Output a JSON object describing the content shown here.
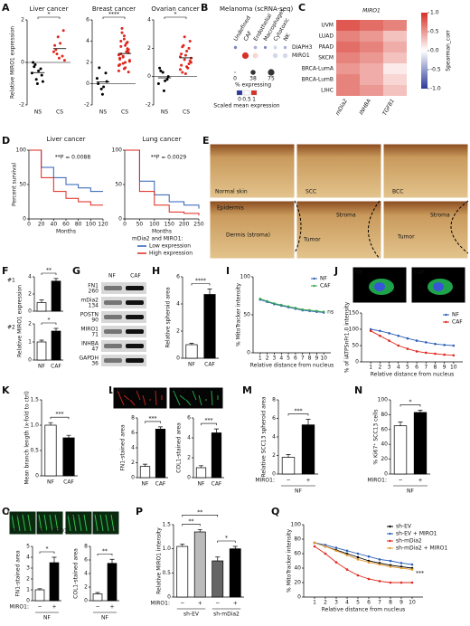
{
  "panel_letters": [
    "A",
    "B",
    "C",
    "D",
    "E",
    "F",
    "G",
    "H",
    "I",
    "J",
    "K",
    "L",
    "M",
    "N",
    "O",
    "P",
    "Q"
  ],
  "images": {
    "E": [
      "Normal skin",
      "SCC",
      "BCC",
      "Epidermis",
      "Dermis (stroma)",
      "Tumor",
      "Stroma",
      "Tumor",
      "Stroma"
    ],
    "J": [
      "NF",
      "CAF"
    ],
    "L": [
      "FN1",
      "COL1"
    ],
    "O": [
      "FN1",
      "COL1",
      "NF",
      "NF+MIRO1"
    ]
  },
  "blot": {
    "lanes": [
      "NF",
      "CAF"
    ],
    "bands": [
      {
        "name": "FN1",
        "kda": 260
      },
      {
        "name": "mDia2",
        "kda": 134
      },
      {
        "name": "POSTN",
        "kda": 90
      },
      {
        "name": "MIRO1",
        "kda": 71
      },
      {
        "name": "INHBA",
        "kda": 47
      },
      {
        "name": "GAPDH",
        "kda": 36
      }
    ]
  },
  "chart_data": [
    {
      "type": "strip",
      "title": "Liver cancer",
      "ylabel": "Relative MIRO1 expression",
      "categories": [
        "NS",
        "CS"
      ],
      "points": [
        [
          -0.5,
          -0.8,
          -0.3,
          0,
          -1,
          -0.6,
          -0.2,
          -0.4,
          -0.9,
          -0.1
        ],
        [
          0.5,
          1.2,
          0.3,
          0.8,
          0.2,
          1.5,
          0.6,
          0.9,
          0.1,
          0.4
        ]
      ],
      "ylim": [
        -2,
        2
      ],
      "yticks": [
        -2,
        0,
        2
      ],
      "significance": "*"
    },
    {
      "type": "strip",
      "title": "Breast cancer",
      "categories": [
        "NS",
        "CS"
      ],
      "points": [
        [
          0.5,
          -0.5,
          1,
          0,
          -1,
          0.2,
          1.5,
          -0.3
        ],
        [
          1.2,
          2.5,
          3.1,
          1.8,
          4.2,
          2.9,
          3.5,
          1.5,
          2.2,
          4.8,
          3.8,
          2.7,
          1.9,
          3.3,
          2.4,
          4.5,
          1.1,
          2.8,
          3.6,
          2.1,
          5.2,
          3.0,
          1.7,
          2.6,
          3.9,
          2.3,
          1.4,
          3.2,
          4.0,
          2.0
        ]
      ],
      "ylim": [
        -2,
        6
      ],
      "yticks": [
        -2,
        0,
        2,
        4,
        6
      ],
      "significance": "****"
    },
    {
      "type": "strip",
      "title": "Ovarian cancer",
      "categories": [
        "NS",
        "CS"
      ],
      "points": [
        [
          -0.5,
          0.3,
          -0.2,
          0.6,
          -1,
          0,
          0.4,
          -0.3
        ],
        [
          0.5,
          1.2,
          2.0,
          0.8,
          1.5,
          2.5,
          0.3,
          1.8,
          1.0,
          2.2,
          0.6,
          1.4,
          2.8,
          0.9,
          1.6,
          0.2,
          1.1,
          2.1,
          0.7,
          1.3
        ]
      ],
      "ylim": [
        -2,
        4
      ],
      "yticks": [
        -2,
        0,
        2,
        4
      ],
      "significance": "*"
    },
    {
      "type": "dotplot",
      "title": "Melanoma (scRNA-seq)",
      "rows": [
        "DIAPH3",
        "MIRO1"
      ],
      "columns": [
        "Undefined",
        "CAF",
        "Endothelial",
        "Macrophages",
        "Cytotoxic",
        "NK"
      ],
      "pct": [
        [
          10,
          20,
          12,
          8,
          15,
          10
        ],
        [
          40,
          75,
          50,
          45,
          38,
          35
        ]
      ],
      "expr": [
        [
          0.2,
          0.5,
          0.3,
          0.2,
          0.4,
          0.3
        ],
        [
          0.5,
          1,
          0.6,
          0.5,
          0.4,
          0.4
        ]
      ],
      "size_label": "% expressing",
      "size_legend": [
        0,
        38,
        75
      ],
      "color_label": "Scaled mean expression",
      "color_ticks": [
        0,
        0.5,
        1
      ]
    },
    {
      "type": "heatmap",
      "title": "MIRO1",
      "rows": [
        "UVM",
        "LUAD",
        "PAAD",
        "SKCM",
        "BRCA-LumA",
        "BRCA-LumB",
        "LIHC"
      ],
      "columns": [
        "mDia2",
        "INHBA",
        "TGFB1"
      ],
      "values": [
        [
          0.8,
          0.7,
          0.6
        ],
        [
          0.6,
          0.5,
          0.3
        ],
        [
          0.7,
          0.6,
          0.4
        ],
        [
          0.6,
          0.5,
          0.3
        ],
        [
          0.5,
          0.4,
          0.1
        ],
        [
          0.6,
          0.4,
          0.2
        ],
        [
          0.6,
          0.5,
          0.3
        ]
      ],
      "colorbar_label": "Spearman_corr",
      "colorbar_lim": [
        -1,
        1
      ],
      "colorbar_ticks": [
        {
          "value": 1,
          "label": "1.0"
        },
        0.5,
        {
          "value": 0,
          "label": "0.0"
        },
        -0.5,
        {
          "value": -1,
          "label": "-1.0"
        }
      ]
    },
    {
      "type": "km",
      "title": "Liver cancer",
      "annotation": "**P = 0.0088",
      "xlabel": "Months",
      "ylabel": "Percent survival",
      "x": [
        0,
        20,
        40,
        60,
        80,
        100,
        120
      ],
      "xlim": [
        0,
        120
      ],
      "xticks": [
        0,
        20,
        40,
        60,
        80,
        100,
        120
      ],
      "ylim": [
        0,
        100
      ],
      "yticks": [
        0,
        50,
        100
      ],
      "series": [
        {
          "color": "#2c5fb8",
          "values": [
            100,
            75,
            60,
            50,
            45,
            40,
            40
          ]
        },
        {
          "color": "#e0261d",
          "values": [
            100,
            60,
            40,
            30,
            25,
            20,
            20
          ]
        }
      ]
    },
    {
      "type": "km",
      "title": "Lung cancer",
      "annotation": "**P = 0.0029",
      "xlabel": "Months",
      "legend_title": "mDia2 and MIRO1:",
      "legend": "below",
      "x": [
        0,
        50,
        100,
        150,
        200,
        250
      ],
      "xlim": [
        0,
        250
      ],
      "xticks": [
        0,
        50,
        100,
        150,
        200,
        250
      ],
      "ylim": [
        0,
        100
      ],
      "yticks": [
        0,
        50,
        100
      ],
      "series": [
        {
          "name": "Low expression",
          "color": "#2c5fb8",
          "values": [
            100,
            55,
            35,
            25,
            20,
            15
          ]
        },
        {
          "name": "High expression",
          "color": "#e0261d",
          "values": [
            100,
            40,
            20,
            10,
            8,
            5
          ]
        }
      ]
    },
    {
      "type": "bar",
      "label": "#1",
      "ylabel": "Relative MIRO1 expression",
      "values": [
        1,
        3.5
      ],
      "errors": [
        0.3,
        0.3
      ],
      "colors": [
        "#ffffff",
        "#000000"
      ],
      "ylim": [
        0,
        4
      ],
      "yticks": [
        0,
        2,
        4
      ],
      "significance": "**"
    },
    {
      "type": "bar",
      "label": "#2",
      "categories": [
        "NF",
        "CAF"
      ],
      "values": [
        1,
        1.6
      ],
      "errors": [
        0.1,
        0.15
      ],
      "colors": [
        "#ffffff",
        "#000000"
      ],
      "ylim": [
        0,
        2
      ],
      "yticks": [
        0,
        1,
        2
      ],
      "significance": "*"
    },
    {
      "type": "bar",
      "ylabel": "Relative spheroid area",
      "categories": [
        "NF",
        "CAF"
      ],
      "values": [
        1,
        4.7
      ],
      "errors": [
        0.1,
        0.4
      ],
      "colors": [
        "#ffffff",
        "#000000"
      ],
      "ylim": [
        0,
        6
      ],
      "yticks": [
        0,
        2,
        4,
        6
      ],
      "significance": "****"
    },
    {
      "type": "line",
      "ylabel": "% MitoTracker intensity",
      "xlabel": "Relative distance from nucleus",
      "annotation": "ns",
      "legend": "upper right",
      "x": [
        1,
        2,
        3,
        4,
        5,
        6,
        7,
        8,
        9,
        10
      ],
      "xlim": [
        0,
        11
      ],
      "xticks": [
        1,
        2,
        3,
        4,
        5,
        6,
        7,
        8,
        9,
        10
      ],
      "ylim": [
        0,
        100
      ],
      "yticks": [
        0,
        50,
        100
      ],
      "series": [
        {
          "name": "NF",
          "color": "#2c5fb8",
          "values": [
            70,
            67,
            64,
            62,
            60,
            58,
            56,
            55,
            54,
            53
          ]
        },
        {
          "name": "CAF",
          "color": "#3aa655",
          "values": [
            71,
            68,
            65,
            63,
            61,
            59,
            57,
            56,
            55,
            54
          ]
        }
      ]
    },
    {
      "type": "line",
      "ylabel": "% of iATPSnFr1.0 intensity",
      "xlabel": "Relative distance from nucleus",
      "legend": "upper right",
      "x": [
        1,
        2,
        3,
        4,
        5,
        6,
        7,
        8,
        9,
        10
      ],
      "xlim": [
        0,
        11
      ],
      "xticks": [
        1,
        2,
        3,
        4,
        5,
        6,
        7,
        8,
        9,
        10
      ],
      "ylim": [
        0,
        150
      ],
      "yticks": [
        0,
        50,
        100,
        150
      ],
      "series": [
        {
          "name": "NF",
          "color": "#2c5fb8",
          "values": [
            100,
            95,
            88,
            80,
            72,
            65,
            60,
            55,
            52,
            50
          ]
        },
        {
          "name": "CAF",
          "color": "#e0261d",
          "values": [
            95,
            80,
            65,
            50,
            40,
            32,
            28,
            25,
            22,
            20
          ]
        }
      ]
    },
    {
      "type": "bar",
      "ylabel": "Mean branch length (x-fold to ctrl)",
      "categories": [
        "NF",
        "CAF"
      ],
      "values": [
        1,
        0.75
      ],
      "errors": [
        0.05,
        0.05
      ],
      "colors": [
        "#ffffff",
        "#000000"
      ],
      "ylim": [
        0,
        1.5
      ],
      "yticks": [
        0,
        0.5,
        {
          "value": 1,
          "label": "1.0"
        },
        1.5
      ],
      "significance": "***"
    },
    {
      "type": "bar",
      "ylabel": "FN1-stained area",
      "categories": [
        "NF",
        "CAF"
      ],
      "values": [
        1.5,
        6.5
      ],
      "errors": [
        0.3,
        0.3
      ],
      "colors": [
        "#ffffff",
        "#000000"
      ],
      "ylim": [
        0,
        8
      ],
      "yticks": [
        0,
        2,
        4,
        6,
        8
      ],
      "significance": "***"
    },
    {
      "type": "bar",
      "ylabel": "COL1-stained area",
      "categories": [
        "NF",
        "CAF"
      ],
      "values": [
        1,
        4.5
      ],
      "errors": [
        0.2,
        0.4
      ],
      "colors": [
        "#ffffff",
        "#000000"
      ],
      "ylim": [
        0,
        6
      ],
      "yticks": [
        0,
        2,
        4,
        6
      ],
      "significance": "***"
    },
    {
      "type": "bar",
      "ylabel": "Relative SCC13 spheroid area",
      "categories": [
        "−",
        "+"
      ],
      "row_label": "MIRO1:",
      "group": "NF",
      "values": [
        1.8,
        5.3
      ],
      "errors": [
        0.3,
        0.6
      ],
      "colors": [
        "#ffffff",
        "#000000"
      ],
      "ylim": [
        0,
        8
      ],
      "yticks": [
        0,
        2,
        4,
        6,
        8
      ],
      "significance": "***"
    },
    {
      "type": "bar",
      "ylabel": "% Ki67⁺ SCC13 cells",
      "categories": [
        "−",
        "+"
      ],
      "row_label": "MIRO1:",
      "group": "NF",
      "values": [
        65,
        83
      ],
      "errors": [
        5,
        3
      ],
      "colors": [
        "#ffffff",
        "#000000"
      ],
      "ylim": [
        0,
        100
      ],
      "yticks": [
        0,
        20,
        40,
        60,
        80,
        100
      ],
      "significance": "*"
    },
    {
      "type": "bar",
      "ylabel": "FN1-stained area",
      "categories": [
        "−",
        "+"
      ],
      "row_label": "MIRO1:",
      "group": "NF",
      "values": [
        1,
        3.5
      ],
      "errors": [
        0.1,
        0.5
      ],
      "colors": [
        "#ffffff",
        "#000000"
      ],
      "ylim": [
        0,
        5
      ],
      "yticks": [
        0,
        1,
        2,
        3,
        4,
        5
      ],
      "significance": "*"
    },
    {
      "type": "bar",
      "ylabel": "COL1-stained area",
      "categories": [
        "−",
        "+"
      ],
      "group": "NF",
      "values": [
        1,
        5.5
      ],
      "errors": [
        0.2,
        0.6
      ],
      "colors": [
        "#ffffff",
        "#000000"
      ],
      "ylim": [
        0,
        8
      ],
      "yticks": [
        0,
        2,
        4,
        6,
        8
      ],
      "significance": "**"
    },
    {
      "type": "bar",
      "ylabel": "Relative MIRO1 intensity",
      "categories": [
        "−",
        "+",
        "−",
        "+"
      ],
      "row_label": "MIRO1:",
      "groups": [
        "sh-EV",
        "sh-mDia2"
      ],
      "values": [
        1.05,
        1.35,
        0.75,
        1.0
      ],
      "errors": [
        0.05,
        0.05,
        0.08,
        0.05
      ],
      "colors": [
        "#ffffff",
        "#bbbbbb",
        "#666666",
        "#000000"
      ],
      "ylim": [
        0,
        1.5
      ],
      "yticks": [
        0,
        0.5,
        {
          "value": 1,
          "label": "1.0"
        },
        1.5
      ],
      "significance": [
        "**",
        "*",
        "**"
      ]
    },
    {
      "type": "line",
      "ylabel": "% MitoTracker intensity",
      "xlabel": "Relative distance from nucleus",
      "annotation": "***",
      "legend": "upper right",
      "x": [
        1,
        2,
        3,
        4,
        5,
        6,
        7,
        8,
        9,
        10
      ],
      "xlim": [
        0,
        11
      ],
      "xticks": [
        1,
        2,
        3,
        4,
        5,
        6,
        7,
        8,
        9,
        10
      ],
      "ylim": [
        0,
        100
      ],
      "yticks": [
        0,
        20,
        40,
        60,
        80,
        100
      ],
      "series": [
        {
          "name": "sh-EV",
          "color": "#000000",
          "values": [
            75,
            70,
            65,
            60,
            55,
            50,
            47,
            44,
            42,
            40
          ]
        },
        {
          "name": "sh-EV + MIRO1",
          "color": "#2c5fb8",
          "values": [
            75,
            72,
            68,
            64,
            60,
            56,
            52,
            50,
            47,
            45
          ]
        },
        {
          "name": "sh-mDia2",
          "color": "#e0261d",
          "values": [
            70,
            60,
            48,
            38,
            30,
            25,
            22,
            20,
            20,
            20
          ]
        },
        {
          "name": "sh-mDia2 + MIRO1",
          "color": "#e59a2d",
          "values": [
            75,
            70,
            64,
            58,
            52,
            48,
            45,
            42,
            40,
            38
          ]
        }
      ]
    }
  ]
}
